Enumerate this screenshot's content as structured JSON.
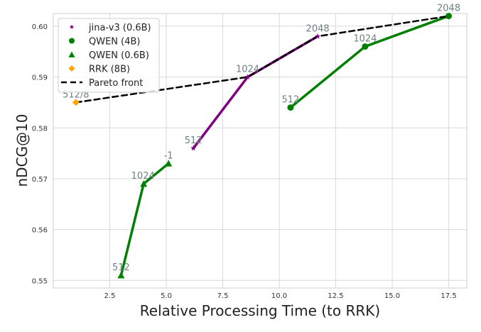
{
  "chart_data": {
    "type": "line",
    "title": "",
    "xlabel": "Relative Processing Time (to RRK)",
    "ylabel": "nDCG@10",
    "xlim": [
      0.0,
      18.3
    ],
    "ylim": [
      0.5485,
      0.6025
    ],
    "xticks": [
      2.5,
      5.0,
      7.5,
      10.0,
      12.5,
      15.0,
      17.5
    ],
    "xtick_labels": [
      "2.5",
      "5.0",
      "7.5",
      "10.0",
      "12.5",
      "15.0",
      "17.5"
    ],
    "yticks": [
      0.55,
      0.56,
      0.57,
      0.58,
      0.59,
      0.6
    ],
    "ytick_labels": [
      "0.55",
      "0.56",
      "0.57",
      "0.58",
      "0.59",
      "0.60"
    ],
    "grid": true,
    "legend_position": "top-left",
    "series": [
      {
        "name": "jina-v3 (0.6B)",
        "color": "#800080",
        "marker": "star",
        "x": [
          6.2,
          8.6,
          11.7
        ],
        "y": [
          0.576,
          0.59,
          0.598
        ],
        "labels": [
          "512",
          "1024",
          "2048"
        ]
      },
      {
        "name": "QWEN (4B)",
        "color": "#008000",
        "marker": "circle",
        "x": [
          10.5,
          13.8,
          17.5
        ],
        "y": [
          0.584,
          0.596,
          0.602
        ],
        "labels": [
          "512",
          "1024",
          "2048"
        ]
      },
      {
        "name": "QWEN (0.6B)",
        "color": "#008000",
        "marker": "triangle",
        "x": [
          3.0,
          4.0,
          5.1
        ],
        "y": [
          0.551,
          0.569,
          0.573
        ],
        "labels": [
          "512",
          "1024",
          "-1"
        ]
      },
      {
        "name": "RRK (8B)",
        "color": "#ffa500",
        "marker": "diamond",
        "x": [
          1.0
        ],
        "y": [
          0.585
        ],
        "labels": [
          "512/8"
        ]
      },
      {
        "name": "Pareto front",
        "color": "#000000",
        "style": "dashed",
        "x": [
          1.0,
          8.6,
          11.7,
          17.5
        ],
        "y": [
          0.585,
          0.59,
          0.598,
          0.602
        ]
      }
    ]
  }
}
